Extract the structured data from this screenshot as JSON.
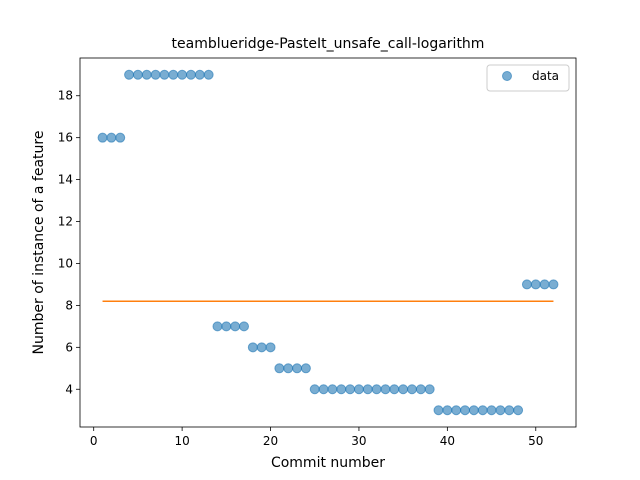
{
  "chart_data": {
    "type": "scatter",
    "title": "teamblueridge-PasteIt_unsafe_call-logarithm",
    "xlabel": "Commit number",
    "ylabel": "Number of instance of a feature",
    "xlim": [
      -1.55,
      54.55
    ],
    "ylim": [
      2.2,
      19.8
    ],
    "xticks": [
      0,
      10,
      20,
      30,
      40,
      50
    ],
    "yticks": [
      4,
      6,
      8,
      10,
      12,
      14,
      16,
      18
    ],
    "grid": false,
    "legend_position": "upper right",
    "series": [
      {
        "name": "data",
        "kind": "scatter",
        "color": "#1f77b4",
        "x": [
          1,
          2,
          3,
          4,
          5,
          6,
          7,
          8,
          9,
          10,
          11,
          12,
          13,
          14,
          15,
          16,
          17,
          18,
          19,
          20,
          21,
          22,
          23,
          24,
          25,
          26,
          27,
          28,
          29,
          30,
          31,
          32,
          33,
          34,
          35,
          36,
          37,
          38,
          39,
          40,
          41,
          42,
          43,
          44,
          45,
          46,
          47,
          48,
          49,
          50,
          51,
          52
        ],
        "y": [
          16,
          16,
          16,
          19,
          19,
          19,
          19,
          19,
          19,
          19,
          19,
          19,
          19,
          7,
          7,
          7,
          7,
          6,
          6,
          6,
          5,
          5,
          5,
          5,
          4,
          4,
          4,
          4,
          4,
          4,
          4,
          4,
          4,
          4,
          4,
          4,
          4,
          4,
          3,
          3,
          3,
          3,
          3,
          3,
          3,
          3,
          3,
          3,
          9,
          9,
          9,
          9
        ]
      },
      {
        "kind": "line",
        "color": "#ff7f0e",
        "x": [
          1,
          52
        ],
        "y": [
          8.2,
          8.2
        ]
      }
    ]
  }
}
